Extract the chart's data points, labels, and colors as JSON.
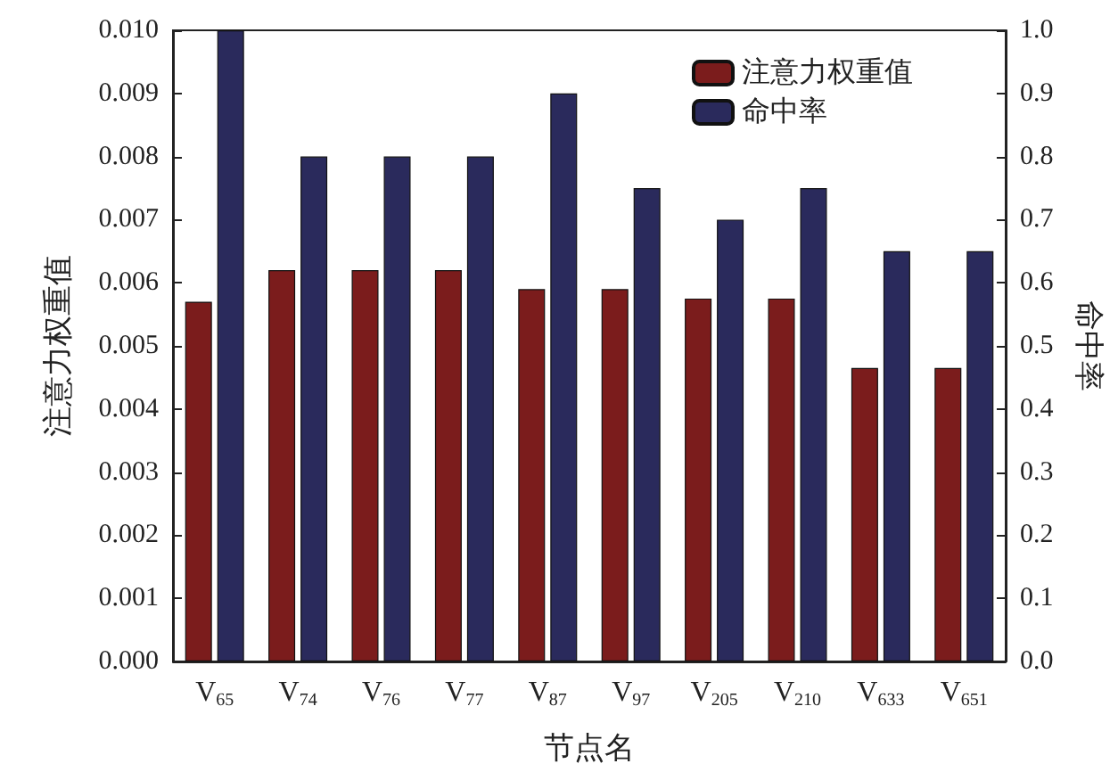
{
  "chart_data": {
    "type": "bar",
    "xlabel": "节点名",
    "ylabel": "注意力权重值",
    "y2label": "命中率",
    "categories": [
      "V$_{65}$",
      "V$_{74}$",
      "V$_{76}$",
      "V$_{77}$",
      "V$_{87}$",
      "V$_{97}$",
      "V$_{205}$",
      "V$_{210}$",
      "V$_{633}$",
      "V$_{651}$"
    ],
    "series": [
      {
        "name": "注意力权重值",
        "color": "#7b1c1c",
        "values": [
          0.0057,
          0.0062,
          0.0062,
          0.0062,
          0.0059,
          0.0059,
          0.00575,
          0.00575,
          0.00465,
          0.00465
        ]
      },
      {
        "name": "命中率",
        "color": "#2a2a5c",
        "axis": "y2",
        "values": [
          1.0,
          0.8,
          0.8,
          0.8,
          0.9,
          0.75,
          0.7,
          0.75,
          0.65,
          0.65
        ]
      }
    ],
    "ylim": [
      0,
      0.01
    ],
    "yticks": [
      {
        "value": 0,
        "label": "0.000"
      },
      {
        "value": 0.001,
        "label": "0.001"
      },
      {
        "value": 0.002,
        "label": "0.002"
      },
      {
        "value": 0.003,
        "label": "0.003"
      },
      {
        "value": 0.004,
        "label": "0.004"
      },
      {
        "value": 0.005,
        "label": "0.005"
      },
      {
        "value": 0.006,
        "label": "0.006"
      },
      {
        "value": 0.007,
        "label": "0.007"
      },
      {
        "value": 0.008,
        "label": "0.008"
      },
      {
        "value": 0.009,
        "label": "0.009"
      },
      {
        "value": 0.01,
        "label": "0.010"
      }
    ],
    "y2lim": [
      0,
      1.0
    ],
    "y2ticks": [
      {
        "value": 0,
        "label": "0.0"
      },
      {
        "value": 0.1,
        "label": "0.1"
      },
      {
        "value": 0.2,
        "label": "0.2"
      },
      {
        "value": 0.3,
        "label": "0.3"
      },
      {
        "value": 0.4,
        "label": "0.4"
      },
      {
        "value": 0.5,
        "label": "0.5"
      },
      {
        "value": 0.6,
        "label": "0.6"
      },
      {
        "value": 0.7,
        "label": "0.7"
      },
      {
        "value": 0.8,
        "label": "0.8"
      },
      {
        "value": 0.9,
        "label": "0.9"
      },
      {
        "value": 1.0,
        "label": "1.0"
      }
    ],
    "legend": "top right",
    "grid": false
  }
}
